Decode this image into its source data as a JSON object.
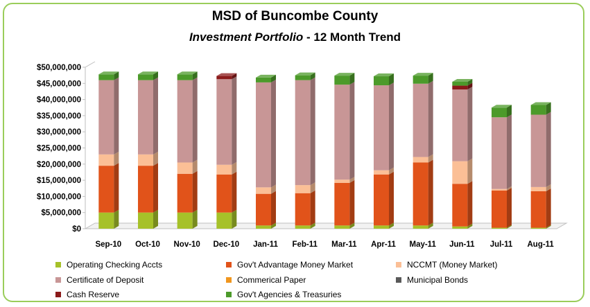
{
  "header": {
    "title": "MSD of Buncombe County",
    "subtitle_italic": "Investment Portfolio",
    "subtitle_rest": " - 12 Month Trend"
  },
  "chart_data": {
    "type": "bar",
    "stacked": true,
    "three_d": true,
    "categories": [
      "Sep-10",
      "Oct-10",
      "Nov-10",
      "Dec-10",
      "Jan-11",
      "Feb-11",
      "Mar-11",
      "Apr-11",
      "May-11",
      "Jun-11",
      "Jul-11",
      "Aug-11"
    ],
    "ylim": [
      0,
      50000000
    ],
    "yticks": [
      "$0",
      "$5,000,000",
      "$10,000,000",
      "$15,000,000",
      "$20,000,000",
      "$25,000,000",
      "$30,000,000",
      "$35,000,000",
      "$40,000,000",
      "$45,000,000",
      "$50,000,000"
    ],
    "series": [
      {
        "name": "Operating Checking Accts",
        "color": "#a6c129",
        "values": [
          5000000,
          5000000,
          5000000,
          5000000,
          1000000,
          1000000,
          1000000,
          1000000,
          1000000,
          700000,
          300000,
          300000
        ]
      },
      {
        "name": "Gov't Advantage Money Market",
        "color": "#e1531a",
        "values": [
          14500000,
          14500000,
          12000000,
          11800000,
          9800000,
          10000000,
          13200000,
          15800000,
          19500000,
          13200000,
          11500000,
          11300000
        ]
      },
      {
        "name": "NCCMT (Money Market)",
        "color": "#fbbf96",
        "values": [
          3500000,
          3500000,
          3500000,
          3000000,
          2000000,
          2500000,
          1000000,
          1300000,
          1700000,
          7000000,
          500000,
          1300000
        ]
      },
      {
        "name": "Certificate of Deposit",
        "color": "#c89696",
        "values": [
          23000000,
          23000000,
          25500000,
          26500000,
          32500000,
          32500000,
          29400000,
          26300000,
          22700000,
          22200000,
          22200000,
          22400000
        ]
      },
      {
        "name": "Commerical Paper",
        "color": "#f0961e",
        "values": [
          0,
          0,
          0,
          0,
          0,
          0,
          0,
          0,
          0,
          0,
          0,
          0
        ]
      },
      {
        "name": "Municipal Bonds",
        "color": "#595959",
        "values": [
          0,
          0,
          0,
          0,
          0,
          0,
          0,
          0,
          0,
          0,
          0,
          0
        ]
      },
      {
        "name": "Cash Reserve",
        "color": "#8b1a1a",
        "values": [
          0,
          0,
          0,
          1000000,
          0,
          0,
          0,
          0,
          0,
          1200000,
          0,
          0
        ]
      },
      {
        "name": "Gov't Agencies & Treasuries",
        "color": "#4c9a2a",
        "values": [
          1800000,
          1800000,
          1800000,
          0,
          1500000,
          1500000,
          2800000,
          2800000,
          2500000,
          1200000,
          3000000,
          3000000
        ]
      }
    ],
    "legend_position": "bottom",
    "grid": false
  }
}
